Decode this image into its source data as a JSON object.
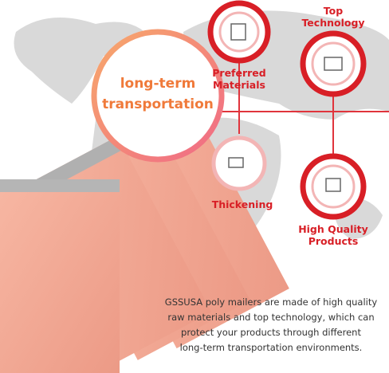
{
  "center": {
    "lines": [
      "long-term",
      "transportation"
    ]
  },
  "features": [
    {
      "lines": [
        "Preferred",
        "Materials"
      ]
    },
    {
      "lines": [
        "Top",
        "Technology"
      ]
    },
    {
      "lines": [
        "Thickening"
      ]
    },
    {
      "lines": [
        "High Quality",
        "Products"
      ]
    }
  ],
  "description": {
    "lines": [
      "GSSUSA poly mailers are made of high quality",
      "raw materials and top technology, which can",
      "protect your products through different",
      "long-term transportation environments."
    ]
  }
}
